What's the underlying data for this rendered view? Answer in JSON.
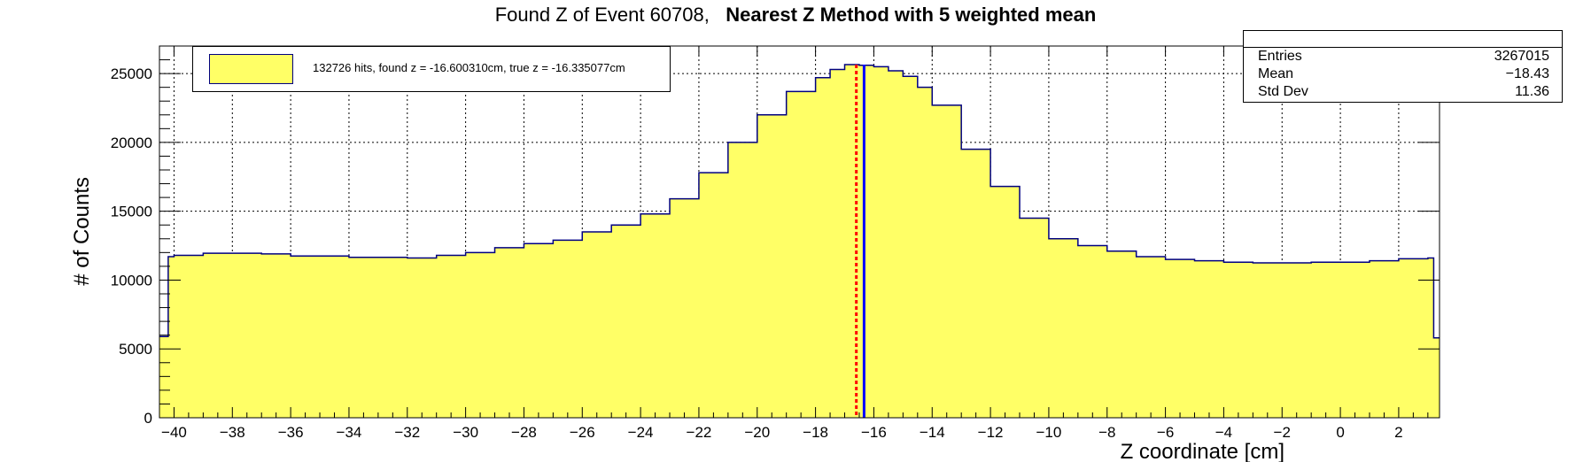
{
  "title": {
    "prefix": "Found Z of Event 60708,",
    "bold": "Nearest Z Method with 5 weighted mean"
  },
  "stats": {
    "rows": [
      {
        "label": "Entries",
        "value": "3267015"
      },
      {
        "label": "Mean",
        "value": "−18.43"
      },
      {
        "label": "Std Dev",
        "value": "11.36"
      }
    ]
  },
  "legend": {
    "entry": "132726 hits, found z = -16.600310cm, true z = -16.335077cm"
  },
  "colors": {
    "fill": "#ffff66",
    "outline": "#000080",
    "found_line": "#ff0000",
    "true_line": "#0000ff"
  },
  "chart_data": {
    "type": "area",
    "title": "Found Z of Event 60708,   Nearest Z Method with 5 weighted mean",
    "xlabel": "Z coordinate [cm]",
    "ylabel": "# of Counts",
    "xlim": [
      -40.5,
      3.4
    ],
    "ylim": [
      0,
      27000
    ],
    "grid": true,
    "legend_position": "top-left",
    "x_ticks": [
      -40,
      -38,
      -36,
      -34,
      -32,
      -30,
      -28,
      -26,
      -24,
      -22,
      -20,
      -18,
      -16,
      -14,
      -12,
      -10,
      -8,
      -6,
      -4,
      -2,
      0,
      2
    ],
    "y_ticks": [
      0,
      5000,
      10000,
      15000,
      20000,
      25000
    ],
    "x_tick_labels": [
      "−40",
      "−38",
      "−36",
      "−34",
      "−32",
      "−30",
      "−28",
      "−26",
      "−24",
      "−22",
      "−20",
      "−18",
      "−16",
      "−14",
      "−12",
      "−10",
      "−8",
      "−6",
      "−4",
      "−2",
      "0",
      "2"
    ],
    "y_tick_labels": [
      "0",
      "5000",
      "10000",
      "15000",
      "20000",
      "25000"
    ],
    "series": [
      {
        "kind": "histogram",
        "x": [
          -40.5,
          -40.2,
          -40.0,
          -39.0,
          -38.0,
          -37.0,
          -36.0,
          -35.0,
          -34.0,
          -33.0,
          -32.0,
          -31.0,
          -30.0,
          -29.0,
          -28.0,
          -27.0,
          -26.0,
          -25.0,
          -24.0,
          -23.0,
          -22.0,
          -21.0,
          -20.0,
          -19.0,
          -18.0,
          -17.5,
          -17.0,
          -16.5,
          -16.0,
          -15.5,
          -15.0,
          -14.5,
          -14.0,
          -13.0,
          -12.0,
          -11.0,
          -10.0,
          -9.0,
          -8.0,
          -7.0,
          -6.0,
          -5.0,
          -4.0,
          -3.0,
          -2.0,
          -1.0,
          0.0,
          1.0,
          2.0,
          3.0,
          3.2,
          3.4
        ],
        "y": [
          5900,
          11700,
          11800,
          11950,
          11950,
          11900,
          11750,
          11750,
          11650,
          11650,
          11600,
          11800,
          12000,
          12350,
          12650,
          12900,
          13500,
          14000,
          14800,
          15900,
          17800,
          20000,
          22000,
          23700,
          24700,
          25300,
          25650,
          25600,
          25500,
          25200,
          24800,
          24000,
          22700,
          19500,
          16800,
          14500,
          13000,
          12500,
          12100,
          11700,
          11500,
          11400,
          11300,
          11250,
          11250,
          11300,
          11300,
          11400,
          11550,
          11600,
          5800,
          5800
        ]
      }
    ],
    "found_z": -16.60031,
    "true_z": -16.335077
  }
}
